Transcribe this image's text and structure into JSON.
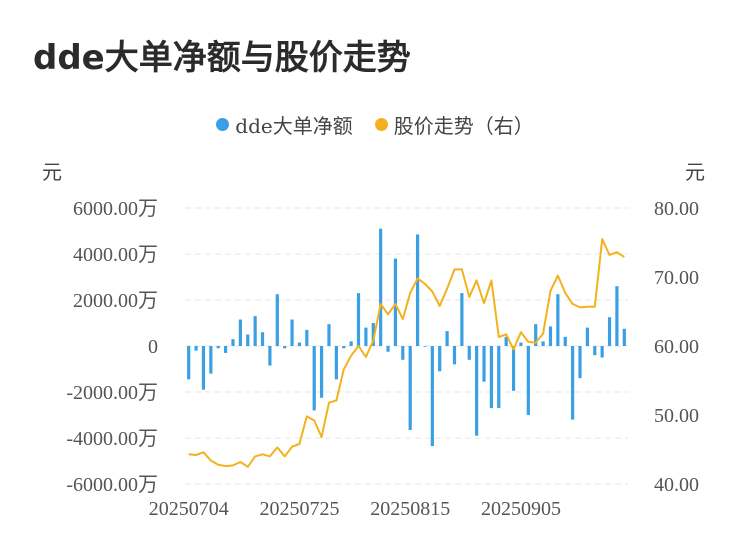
{
  "title": "dde大单净额与股价走势",
  "legend": {
    "bar_label": "dde大单净额",
    "line_label": "股价走势（右）"
  },
  "colors": {
    "bar": "#3a9fe3",
    "line": "#f3b21d",
    "grid": "#e5e5e5"
  },
  "y_left_unit": "元",
  "y_right_unit": "元",
  "chart_data": {
    "type": "bar+line",
    "title": "dde大单净额与股价走势",
    "x_tick_labels": [
      "20250704",
      "20250725",
      "20250815",
      "20250905"
    ],
    "y_left": {
      "ticks": [
        "6000.00万",
        "4000.00万",
        "2000.00万",
        "0",
        "-2000.00万",
        "-4000.00万",
        "-6000.00万"
      ],
      "ylim": [
        -6000,
        6000
      ],
      "unit": "万元"
    },
    "y_right": {
      "ticks": [
        "80.00",
        "70.00",
        "60.00",
        "50.00",
        "40.00"
      ],
      "ylim": [
        40,
        80
      ],
      "unit": "元"
    },
    "series": [
      {
        "name": "dde大单净额",
        "type": "bar",
        "axis": "left",
        "values": [
          -1450,
          -200,
          -1900,
          -1200,
          -100,
          -300,
          300,
          1150,
          500,
          1300,
          600,
          -850,
          2250,
          -100,
          1150,
          150,
          700,
          -2800,
          -2250,
          950,
          -1450,
          -100,
          200,
          2300,
          800,
          1000,
          5100,
          -250,
          3800,
          -600,
          -3650,
          4850,
          0,
          -4350,
          -1100,
          650,
          -800,
          2300,
          -600,
          -3900,
          -1550,
          -2700,
          -2700,
          400,
          -1950,
          150,
          -3000,
          950,
          200,
          850,
          2250,
          400,
          -3200,
          -1400,
          800,
          -400,
          -500,
          1250,
          2600,
          750
        ]
      },
      {
        "name": "股价走势（右）",
        "type": "line",
        "axis": "right",
        "values": [
          44.3,
          44.2,
          44.6,
          43.4,
          42.8,
          42.6,
          42.7,
          43.2,
          42.5,
          44.0,
          44.3,
          44.0,
          45.3,
          44.0,
          45.4,
          45.8,
          49.8,
          49.2,
          46.8,
          51.8,
          52.1,
          56.6,
          58.6,
          60.0,
          58.4,
          60.8,
          66.1,
          64.6,
          66.1,
          63.9,
          67.7,
          69.8,
          69.0,
          67.9,
          65.8,
          68.3,
          71.1,
          71.1,
          67.1,
          69.5,
          66.2,
          69.5,
          61.3,
          61.7,
          59.5,
          62.0,
          60.6,
          60.5,
          61.8,
          68.0,
          70.2,
          67.7,
          66.1,
          65.6,
          65.7,
          65.7,
          75.5,
          73.2,
          73.6,
          72.9
        ]
      }
    ],
    "grid": true,
    "legend_position": "top-center"
  }
}
